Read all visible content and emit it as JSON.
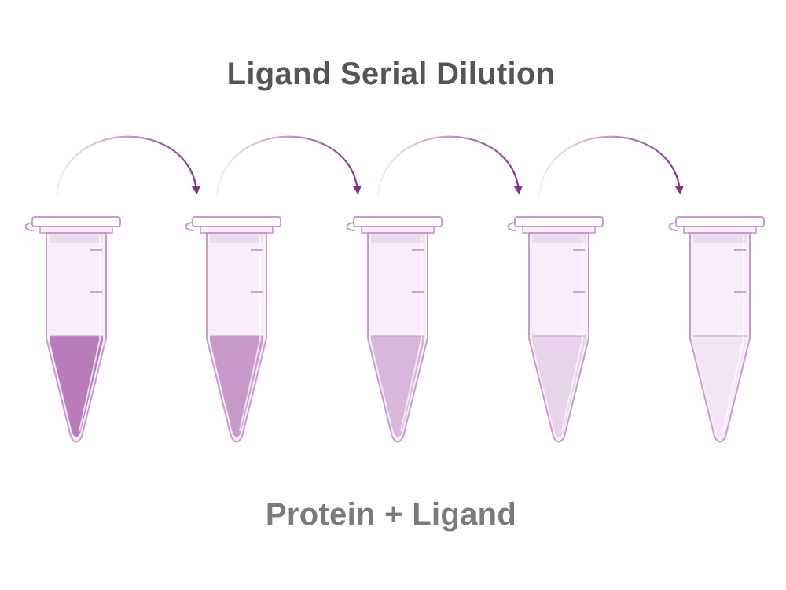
{
  "title": "Ligand Serial Dilution",
  "caption": "Protein + Ligand",
  "colors": {
    "arrow": "#8b2f86",
    "tube_outline": "#c99ad0",
    "tube_body": "#f7eef9",
    "text_title": "#555555",
    "text_caption": "#7a7a7a"
  },
  "tubes": [
    {
      "label": "tube-1",
      "liquid_color": "#b97cba"
    },
    {
      "label": "tube-2",
      "liquid_color": "#c89aca"
    },
    {
      "label": "tube-3",
      "liquid_color": "#d8b7da"
    },
    {
      "label": "tube-4",
      "liquid_color": "#e7d3ea"
    },
    {
      "label": "tube-5",
      "liquid_color": "#f2e8f4"
    }
  ],
  "transfers": [
    {
      "from": 1,
      "to": 2
    },
    {
      "from": 2,
      "to": 3
    },
    {
      "from": 3,
      "to": 4
    },
    {
      "from": 4,
      "to": 5
    }
  ]
}
